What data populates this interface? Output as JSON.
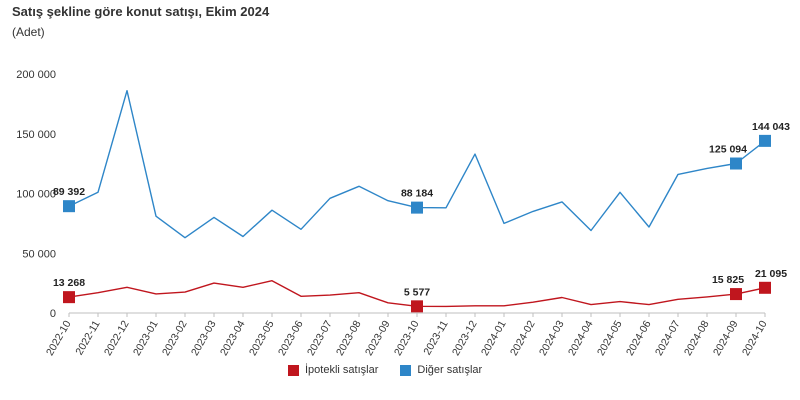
{
  "title": "Satış şekline göre konut satışı, Ekim 2024",
  "subtitle": "(Adet)",
  "colors": {
    "ipotekli": "#c0161e",
    "diger": "#2e86c8",
    "axis": "#bfbfbf",
    "text": "#333333"
  },
  "chart_data": {
    "type": "line",
    "categories": [
      "2022-10",
      "2022-11",
      "2022-12",
      "2023-01",
      "2023-02",
      "2023-03",
      "2023-04",
      "2023-05",
      "2023-06",
      "2023-07",
      "2023-08",
      "2023-09",
      "2023-10",
      "2023-11",
      "2023-12",
      "2024-01",
      "2024-02",
      "2024-03",
      "2024-04",
      "2024-05",
      "2024-06",
      "2024-07",
      "2024-08",
      "2024-09",
      "2024-10"
    ],
    "ylim": [
      0,
      200000
    ],
    "yticks": [
      0,
      50000,
      100000,
      150000,
      200000
    ],
    "ytick_labels": [
      "0",
      "50 000",
      "100 000",
      "150 000",
      "200 000"
    ],
    "grid": false,
    "legend_position": "bottom",
    "series": [
      {
        "name": "İpotekli satışlar",
        "color": "#c0161e",
        "values": [
          13268,
          17000,
          21500,
          16000,
          17500,
          25000,
          21500,
          27000,
          14000,
          15000,
          17000,
          8500,
          5577,
          5500,
          6000,
          6000,
          9000,
          13000,
          7000,
          9500,
          7000,
          11500,
          13500,
          15825,
          21095
        ],
        "markers": [
          {
            "index": 0,
            "label": "13 268"
          },
          {
            "index": 12,
            "label": "5 577"
          },
          {
            "index": 23,
            "label": "15 825"
          },
          {
            "index": 24,
            "label": "21 095"
          }
        ]
      },
      {
        "name": "Diğer satışlar",
        "color": "#2e86c8",
        "values": [
          89392,
          101000,
          186000,
          81000,
          63000,
          80000,
          64000,
          86000,
          70000,
          96000,
          106000,
          94000,
          88184,
          88000,
          133000,
          75000,
          85000,
          93000,
          69000,
          101000,
          72000,
          116000,
          121000,
          125094,
          144043
        ],
        "markers": [
          {
            "index": 0,
            "label": "89 392"
          },
          {
            "index": 12,
            "label": "88 184"
          },
          {
            "index": 23,
            "label": "125 094"
          },
          {
            "index": 24,
            "label": "144 043"
          }
        ]
      }
    ]
  }
}
